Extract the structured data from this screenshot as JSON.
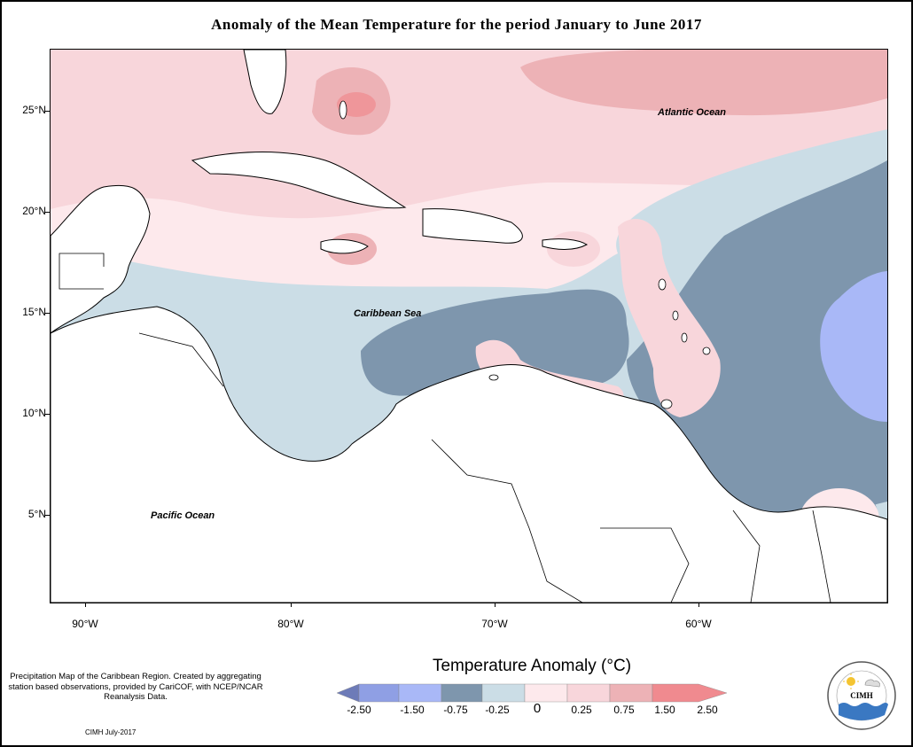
{
  "title": "Anomaly of the Mean Temperature for the period January to June 2017",
  "map": {
    "y_ticks": [
      "25°N",
      "20°N",
      "15°N",
      "10°N",
      "5°N"
    ],
    "x_ticks": [
      "90°W",
      "80°W",
      "70°W",
      "60°W"
    ],
    "ocean_labels": {
      "atlantic": "Atlantic Ocean",
      "caribbean": "Caribbean Sea",
      "pacific": "Pacific Ocean"
    }
  },
  "legend": {
    "title": "Temperature Anomaly (°C)",
    "bins": [
      {
        "color": "#6d7bb8"
      },
      {
        "color": "#8f9fe4"
      },
      {
        "color": "#a9b8f7"
      },
      {
        "color": "#7e96ad"
      },
      {
        "color": "#cbdde6"
      },
      {
        "color": "#fde9ec"
      },
      {
        "color": "#f8d6db"
      },
      {
        "color": "#edb2b6"
      },
      {
        "color": "#f08a8f"
      }
    ],
    "labels": [
      "-2.50",
      "-1.50",
      "-0.75",
      "-0.25",
      "0",
      "0.25",
      "0.75",
      "1.50",
      "2.50"
    ]
  },
  "note": "Precipitation Map of the Caribbean Region. Created by aggregating station based observations, provided by CariCOF, with NCEP/NCAR Reanalysis Data.",
  "credit": "CIMH July-2017",
  "logo": {
    "text": "CIMH",
    "icon": "cimh-logo"
  }
}
